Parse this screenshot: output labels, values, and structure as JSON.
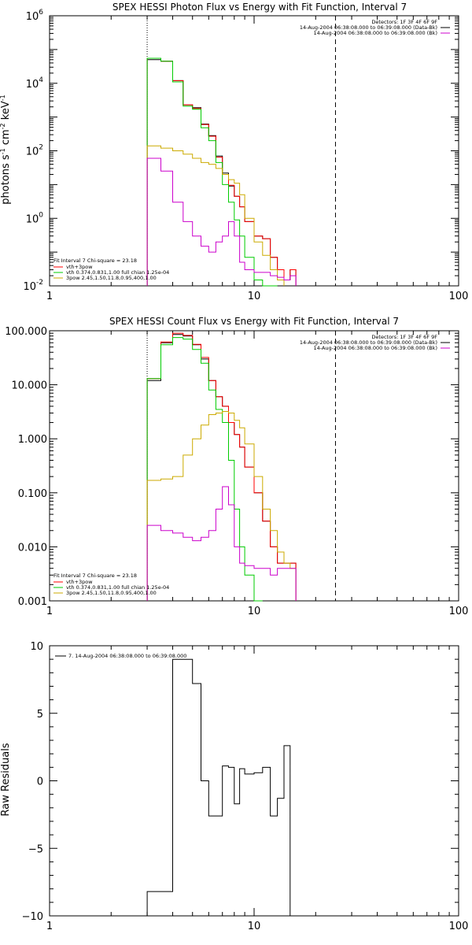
{
  "charts": [
    {
      "title": "SPEX HESSI Photon Flux vs Energy with Fit Function, Interval 7",
      "ylabel": "photons s⁻¹ cm⁻² keV⁻¹",
      "ylabel_base": "photons s",
      "ylabel_mid1": "cm",
      "ylabel_mid2": "keV",
      "sup1": "-1",
      "sup2": "-2",
      "sup3": "-1",
      "x_ticks": [
        "1",
        "10",
        "100"
      ],
      "y_ticks": [
        "10",
        "10",
        "10",
        "10",
        "10"
      ],
      "y_tick_exps": [
        "-2",
        "0",
        "2",
        "4",
        "6"
      ],
      "legend_right": {
        "detectors": "Detectors: 1F 3F 4F 6F 9F",
        "line1": "14-Aug-2004 06:38:08.000 to 06:39:08.000 (Data-Bk)",
        "line2": "14-Aug-2004 06:38:08.000 to 06:39:08.000 (Bk)"
      },
      "legend_left": {
        "header": "Fit Interval  7    Chi-square = 23.18",
        "items": [
          "vth+3pow",
          "vth 0.374,0.831,1.00  full chian 1.25e-04",
          "3pow 2.45,1.50,11.8,0.95,400,1.00"
        ]
      }
    },
    {
      "title": "SPEX HESSI Count Flux vs Energy with Fit Function, Interval 7",
      "x_ticks": [
        "1",
        "10",
        "100"
      ],
      "y_ticks": [
        "0.001",
        "0.010",
        "0.100",
        "1.000",
        "10.000",
        "100.000"
      ],
      "legend_right": {
        "detectors": "Detectors: 1F 3F 4F 6F 9F",
        "line1": "14-Aug-2004 06:38:08.000 to 06:39:08.000 (Data-Bk)",
        "line2": "14-Aug-2004 06:38:08.000 to 06:39:08.000 (Bk)"
      },
      "legend_left": {
        "header": "Fit Interval  7    Chi-square = 23.18",
        "items": [
          "vth+3pow",
          "vth 0.374,0.831,1.00  full chian 1.25e-04",
          "3pow 2.45,1.50,11.8,0.95,400,1.00"
        ]
      }
    },
    {
      "ylabel": "Raw Residuals",
      "x_ticks": [
        "1",
        "10",
        "100"
      ],
      "y_ticks": [
        "−10",
        "−5",
        "0",
        "5",
        "10"
      ],
      "legend": "7. 14-Aug-2004 06:38:08.000 to 06:39:08.000"
    }
  ],
  "chart_data": [
    {
      "type": "line",
      "xscale": "log",
      "yscale": "log",
      "xlim": [
        1,
        100
      ],
      "ylim": [
        0.01,
        1000000
      ],
      "bin_edges": [
        3,
        3.5,
        4,
        4.5,
        5,
        5.5,
        6,
        6.5,
        7,
        7.5,
        8,
        8.5,
        9,
        10,
        11,
        12,
        13,
        14,
        15,
        16,
        18,
        20,
        22,
        25
      ],
      "vlines": {
        "dotted": 3,
        "dashed": 25
      },
      "series": [
        {
          "color": "#000000",
          "values": [
            50000,
            45000,
            12000,
            2300,
            1900,
            620,
            280,
            70,
            22,
            9,
            4.5,
            2.2,
            0.8,
            0.3,
            0.25,
            0.07,
            0.03,
            0.015,
            0.03
          ]
        },
        {
          "color": "#ff0000",
          "values": [
            55000,
            45000,
            12000,
            2300,
            1800,
            600,
            270,
            65,
            20,
            9.5,
            4.5,
            2.2,
            0.8,
            0.3,
            0.25,
            0.07,
            0.03,
            0.015,
            0.03
          ]
        },
        {
          "color": "#00cc00",
          "values": [
            55000,
            45000,
            11000,
            2100,
            1700,
            480,
            200,
            45,
            10,
            3,
            0.9,
            0.3,
            0.07,
            0.015,
            0.01,
            0.01
          ]
        },
        {
          "color": "#ccaa00",
          "values": [
            140,
            120,
            100,
            80,
            60,
            45,
            40,
            30,
            20,
            14,
            11,
            5,
            1,
            0.2,
            0.08,
            0.03,
            0.015
          ]
        },
        {
          "color": "#cc00cc",
          "values": [
            60,
            25,
            3,
            0.8,
            0.3,
            0.15,
            0.1,
            0.2,
            0.3,
            0.8,
            0.3,
            0.05,
            0.03,
            0.025,
            0.025,
            0.02,
            0.018,
            0.015,
            0.02
          ]
        }
      ]
    },
    {
      "type": "line",
      "xscale": "log",
      "yscale": "log",
      "xlim": [
        1,
        100
      ],
      "ylim": [
        0.001,
        100
      ],
      "bin_edges": [
        3,
        3.5,
        4,
        4.5,
        5,
        5.5,
        6,
        6.5,
        7,
        7.5,
        8,
        8.5,
        9,
        10,
        11,
        12,
        13,
        14,
        15,
        16,
        18,
        20,
        22,
        25
      ],
      "vlines": {
        "dotted": 3,
        "dashed": 25
      },
      "series": [
        {
          "color": "#000000",
          "values": [
            12,
            60,
            85,
            80,
            55,
            30,
            12,
            6,
            4,
            2,
            1.2,
            0.7,
            0.3,
            0.1,
            0.03,
            0.01,
            0.005,
            0.005,
            0.005
          ]
        },
        {
          "color": "#ff0000",
          "values": [
            13,
            62,
            90,
            82,
            56,
            32,
            12,
            6,
            4,
            2,
            1.2,
            0.7,
            0.3,
            0.1,
            0.03,
            0.01,
            0.005,
            0.005,
            0.005
          ]
        },
        {
          "color": "#00cc00",
          "values": [
            13,
            55,
            75,
            70,
            45,
            25,
            8,
            3.5,
            2,
            0.4,
            0.05,
            0.01,
            0.003,
            0.001
          ]
        },
        {
          "color": "#ccaa00",
          "values": [
            0.17,
            0.18,
            0.2,
            0.5,
            1,
            1.8,
            2.8,
            3,
            3.2,
            3,
            2.2,
            1.6,
            0.8,
            0.2,
            0.05,
            0.02,
            0.008,
            0.005,
            0.004
          ]
        },
        {
          "color": "#cc00cc",
          "values": [
            0.025,
            0.02,
            0.018,
            0.015,
            0.013,
            0.015,
            0.02,
            0.05,
            0.13,
            0.06,
            0.01,
            0.005,
            0.0045,
            0.004,
            0.004,
            0.003,
            0.004,
            0.004,
            0.004
          ]
        }
      ]
    },
    {
      "type": "line",
      "xscale": "log",
      "xlim": [
        1,
        100
      ],
      "ylim": [
        -10,
        10
      ],
      "bin_edges": [
        3,
        3.5,
        4,
        4.5,
        5,
        5.5,
        6,
        6.5,
        7,
        7.5,
        8,
        8.5,
        9,
        10,
        11,
        12,
        13,
        14,
        15,
        16,
        18,
        20,
        22,
        25
      ],
      "series": [
        {
          "color": "#000000",
          "values": [
            -8.2,
            -8.2,
            9,
            9,
            7.2,
            0,
            -2.6,
            -2.6,
            1.1,
            1,
            -1.7,
            0.9,
            0.5,
            0.6,
            1,
            -2.6,
            -1.3,
            2.6
          ]
        }
      ]
    }
  ]
}
